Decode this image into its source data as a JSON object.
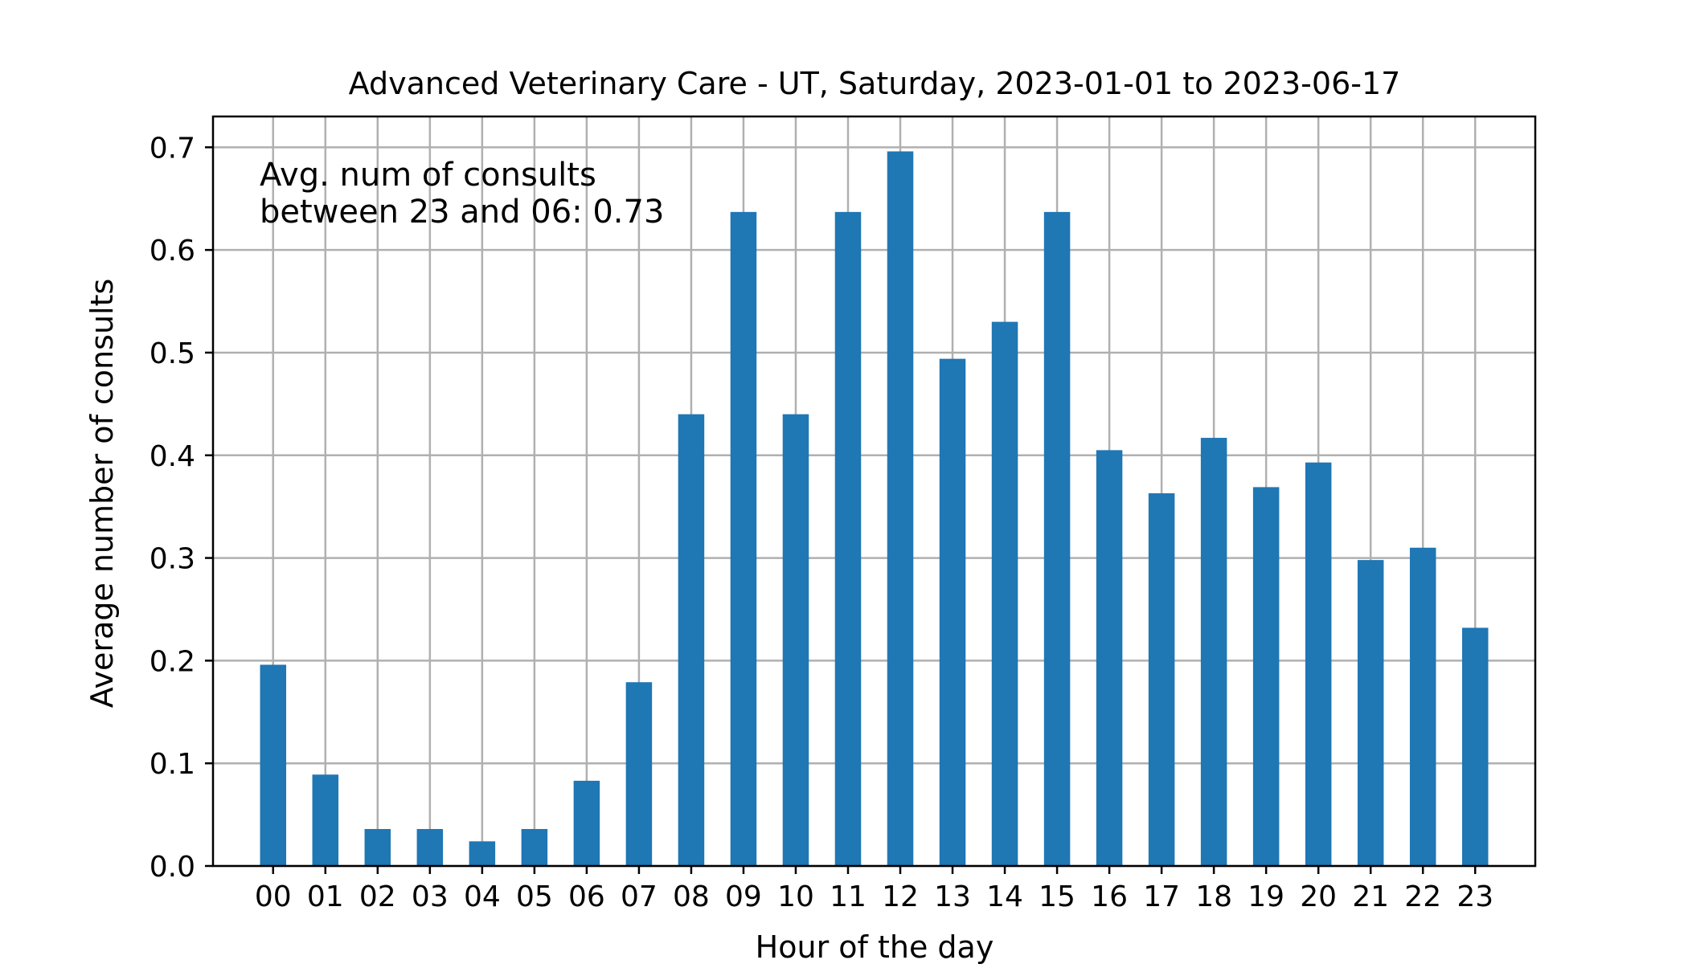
{
  "chart_data": {
    "type": "bar",
    "title": "Advanced Veterinary Care - UT, Saturday, 2023-01-01 to 2023-06-17",
    "xlabel": "Hour of the day",
    "ylabel": "Average number of consults",
    "categories": [
      "00",
      "01",
      "02",
      "03",
      "04",
      "05",
      "06",
      "07",
      "08",
      "09",
      "10",
      "11",
      "12",
      "13",
      "14",
      "15",
      "16",
      "17",
      "18",
      "19",
      "20",
      "21",
      "22",
      "23"
    ],
    "values": [
      0.196,
      0.089,
      0.036,
      0.036,
      0.024,
      0.036,
      0.083,
      0.179,
      0.44,
      0.637,
      0.44,
      0.637,
      0.696,
      0.494,
      0.53,
      0.637,
      0.405,
      0.363,
      0.417,
      0.369,
      0.393,
      0.298,
      0.31,
      0.232
    ],
    "ylim": [
      0,
      0.73
    ],
    "yticks": [
      "0.0",
      "0.1",
      "0.2",
      "0.3",
      "0.4",
      "0.5",
      "0.6",
      "0.7"
    ],
    "grid": true,
    "annotation": [
      "Avg. num of consults",
      "between 23 and 06: 0.73"
    ],
    "bar_color": "#1f77b4",
    "grid_color": "#b0b0b0"
  }
}
